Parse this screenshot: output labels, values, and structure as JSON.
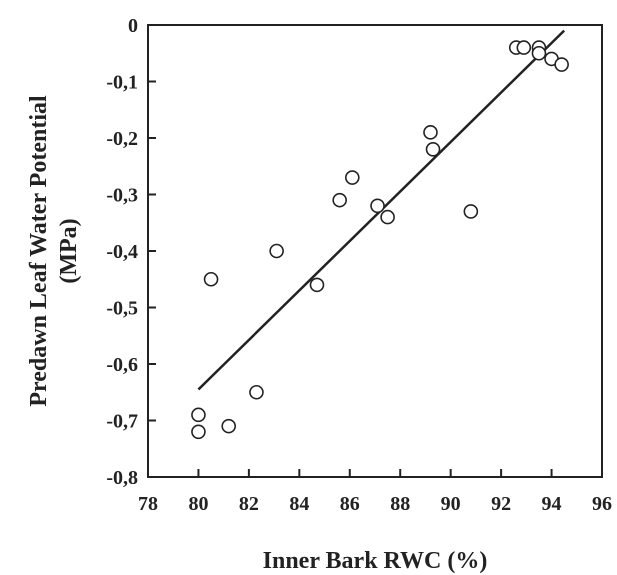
{
  "chart_data": {
    "type": "scatter",
    "title": "",
    "xlabel": "Inner Bark RWC (%)",
    "ylabel_line1": "Predawn Leaf Water Potential",
    "ylabel_line2": "(MPa)",
    "xlim": [
      78,
      96
    ],
    "ylim": [
      -0.8,
      0
    ],
    "x_ticks": [
      78,
      80,
      82,
      84,
      86,
      88,
      90,
      92,
      94,
      96
    ],
    "y_ticks": [
      0,
      -0.1,
      -0.2,
      -0.3,
      -0.4,
      -0.5,
      -0.6,
      -0.7,
      -0.8
    ],
    "x_tick_labels": [
      "78",
      "80",
      "82",
      "84",
      "86",
      "88",
      "90",
      "92",
      "94",
      "96"
    ],
    "y_tick_labels": [
      "0",
      "-0,1",
      "-0,2",
      "-0,3",
      "-0,4",
      "-0,5",
      "-0,6",
      "-0,7",
      "-0,8"
    ],
    "grid": false,
    "legend": "none",
    "series": [
      {
        "marker": "open-circle",
        "points": [
          [
            80.0,
            -0.69
          ],
          [
            80.0,
            -0.72
          ],
          [
            80.5,
            -0.45
          ],
          [
            81.2,
            -0.71
          ],
          [
            82.3,
            -0.65
          ],
          [
            83.1,
            -0.4
          ],
          [
            84.7,
            -0.46
          ],
          [
            85.6,
            -0.31
          ],
          [
            86.1,
            -0.27
          ],
          [
            87.1,
            -0.32
          ],
          [
            87.5,
            -0.34
          ],
          [
            89.2,
            -0.19
          ],
          [
            89.3,
            -0.22
          ],
          [
            90.8,
            -0.33
          ],
          [
            92.6,
            -0.04
          ],
          [
            92.9,
            -0.04
          ],
          [
            93.5,
            -0.04
          ],
          [
            93.5,
            -0.05
          ],
          [
            94.0,
            -0.06
          ],
          [
            94.4,
            -0.07
          ]
        ]
      }
    ],
    "fit_line": {
      "x": [
        80.0,
        94.5
      ],
      "y": [
        -0.645,
        -0.01
      ]
    },
    "colors": {
      "ink": "#222222",
      "background": "#ffffff"
    }
  }
}
